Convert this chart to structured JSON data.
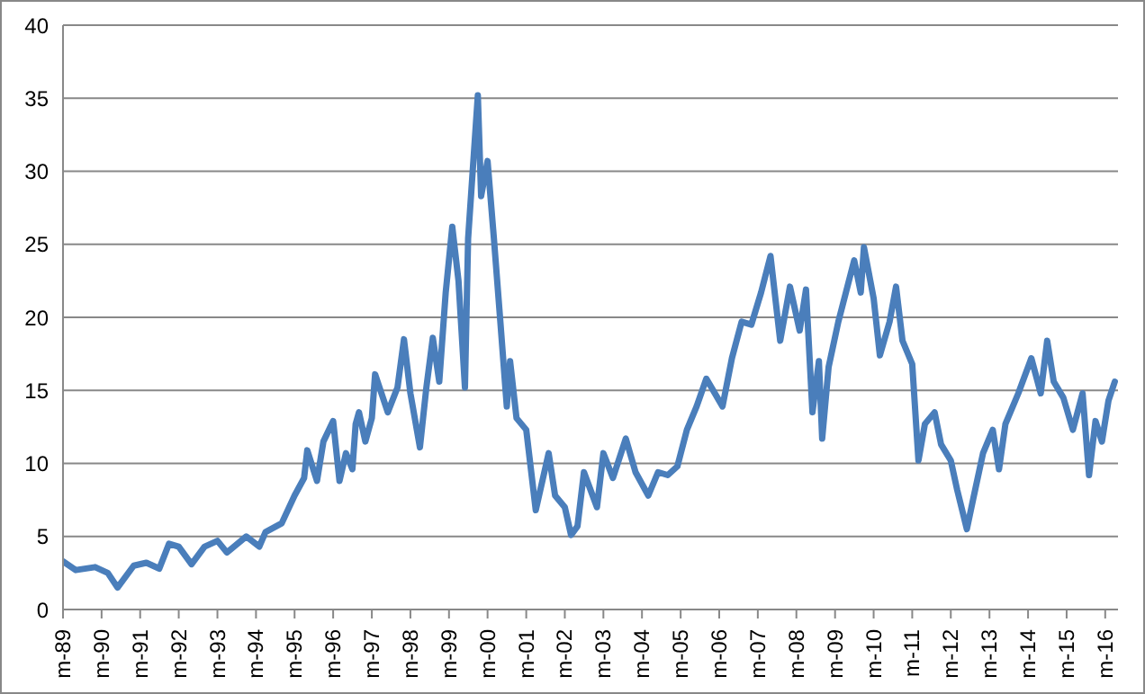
{
  "chart_data": {
    "type": "line",
    "xlim": [
      "1989-01",
      "2016-05"
    ],
    "xticks": [
      {
        "value": "1989-01",
        "label": "m-89"
      },
      {
        "value": "1990-01",
        "label": "m-90"
      },
      {
        "value": "1991-01",
        "label": "m-91"
      },
      {
        "value": "1992-01",
        "label": "m-92"
      },
      {
        "value": "1993-01",
        "label": "m-93"
      },
      {
        "value": "1994-01",
        "label": "m-94"
      },
      {
        "value": "1995-01",
        "label": "m-95"
      },
      {
        "value": "1996-01",
        "label": "m-96"
      },
      {
        "value": "1997-01",
        "label": "m-97"
      },
      {
        "value": "1998-01",
        "label": "m-98"
      },
      {
        "value": "1999-01",
        "label": "m-99"
      },
      {
        "value": "2000-01",
        "label": "m-00"
      },
      {
        "value": "2001-01",
        "label": "m-01"
      },
      {
        "value": "2002-01",
        "label": "m-02"
      },
      {
        "value": "2003-01",
        "label": "m-03"
      },
      {
        "value": "2004-01",
        "label": "m-04"
      },
      {
        "value": "2005-01",
        "label": "m-05"
      },
      {
        "value": "2006-01",
        "label": "m-06"
      },
      {
        "value": "2007-01",
        "label": "m-07"
      },
      {
        "value": "2008-01",
        "label": "m-08"
      },
      {
        "value": "2009-01",
        "label": "m-09"
      },
      {
        "value": "2010-01",
        "label": "m-10"
      },
      {
        "value": "2011-01",
        "label": "m-11"
      },
      {
        "value": "2012-01",
        "label": "m-12"
      },
      {
        "value": "2013-01",
        "label": "m-13"
      },
      {
        "value": "2014-01",
        "label": "m-14"
      },
      {
        "value": "2015-01",
        "label": "m-15"
      },
      {
        "value": "2016-01",
        "label": "m-16"
      }
    ],
    "ylim": [
      0,
      40
    ],
    "yticks": [
      0,
      5,
      10,
      15,
      20,
      25,
      30,
      35,
      40
    ],
    "grid": "y",
    "legend": false,
    "marker": "none",
    "line_style": "solid",
    "x": [
      "1989-01",
      "1989-05",
      "1989-11",
      "1990-03",
      "1990-06",
      "1990-11",
      "1991-03",
      "1991-07",
      "1991-10",
      "1992-01",
      "1992-05",
      "1992-09",
      "1993-01",
      "1993-04",
      "1993-10",
      "1994-02",
      "1994-04",
      "1994-09",
      "1995-01",
      "1995-04",
      "1995-05",
      "1995-08",
      "1995-10",
      "1996-01",
      "1996-03",
      "1996-05",
      "1996-07",
      "1996-08",
      "1996-09",
      "1996-11",
      "1997-01",
      "1997-02",
      "1997-06",
      "1997-09",
      "1997-11",
      "1998-01",
      "1998-04",
      "1998-06",
      "1998-08",
      "1998-10",
      "1998-12",
      "1999-02",
      "1999-04",
      "1999-06",
      "1999-07",
      "1999-10",
      "1999-11",
      "2000-01",
      "2000-03",
      "2000-05",
      "2000-07",
      "2000-08",
      "2000-10",
      "2001-01",
      "2001-04",
      "2001-08",
      "2001-10",
      "2002-01",
      "2002-03",
      "2002-05",
      "2002-07",
      "2002-11",
      "2003-01",
      "2003-04",
      "2003-08",
      "2003-11",
      "2004-03",
      "2004-06",
      "2004-09",
      "2004-12",
      "2005-03",
      "2005-06",
      "2005-09",
      "2006-02",
      "2006-05",
      "2006-08",
      "2006-11",
      "2007-02",
      "2007-05",
      "2007-08",
      "2007-11",
      "2008-02",
      "2008-04",
      "2008-06",
      "2008-08",
      "2008-09",
      "2008-11",
      "2009-02",
      "2009-07",
      "2009-09",
      "2009-10",
      "2010-01",
      "2010-03",
      "2010-06",
      "2010-08",
      "2010-10",
      "2011-01",
      "2011-03",
      "2011-05",
      "2011-08",
      "2011-10",
      "2012-01",
      "2012-03",
      "2012-06",
      "2012-08",
      "2012-11",
      "2013-02",
      "2013-04",
      "2013-06",
      "2013-10",
      "2014-02",
      "2014-05",
      "2014-07",
      "2014-09",
      "2014-12",
      "2015-03",
      "2015-06",
      "2015-08",
      "2015-10",
      "2015-12",
      "2016-02",
      "2016-04"
    ],
    "series": [
      {
        "color": "#4a7ebb",
        "values": [
          3.3,
          2.7,
          2.9,
          2.5,
          1.5,
          3.0,
          3.2,
          2.8,
          4.5,
          4.3,
          3.1,
          4.3,
          4.7,
          3.9,
          5.0,
          4.3,
          5.3,
          5.9,
          7.8,
          9.0,
          10.9,
          8.8,
          11.5,
          12.9,
          8.8,
          10.7,
          9.6,
          12.7,
          13.5,
          11.5,
          13.1,
          16.1,
          13.5,
          15.2,
          18.5,
          14.8,
          11.1,
          15.2,
          18.6,
          15.6,
          21.7,
          26.2,
          22.5,
          15.2,
          25.4,
          35.2,
          28.3,
          30.7,
          25.4,
          19.7,
          13.9,
          17.0,
          13.1,
          12.3,
          6.8,
          10.7,
          7.8,
          7.0,
          5.1,
          5.7,
          9.4,
          7.0,
          10.7,
          9.0,
          11.7,
          9.4,
          7.8,
          9.4,
          9.2,
          9.8,
          12.3,
          13.9,
          15.8,
          13.9,
          17.2,
          19.7,
          19.5,
          21.7,
          24.2,
          18.4,
          22.1,
          19.1,
          21.9,
          13.5,
          17.0,
          11.7,
          16.6,
          19.7,
          23.9,
          21.7,
          24.8,
          21.3,
          17.4,
          19.7,
          22.1,
          18.4,
          16.8,
          10.2,
          12.7,
          13.5,
          11.3,
          10.2,
          8.2,
          5.5,
          7.6,
          10.7,
          12.3,
          9.6,
          12.7,
          14.8,
          17.2,
          14.8,
          18.4,
          15.6,
          14.5,
          12.3,
          14.8,
          9.2,
          12.9,
          11.5,
          14.3,
          15.6
        ]
      }
    ]
  }
}
